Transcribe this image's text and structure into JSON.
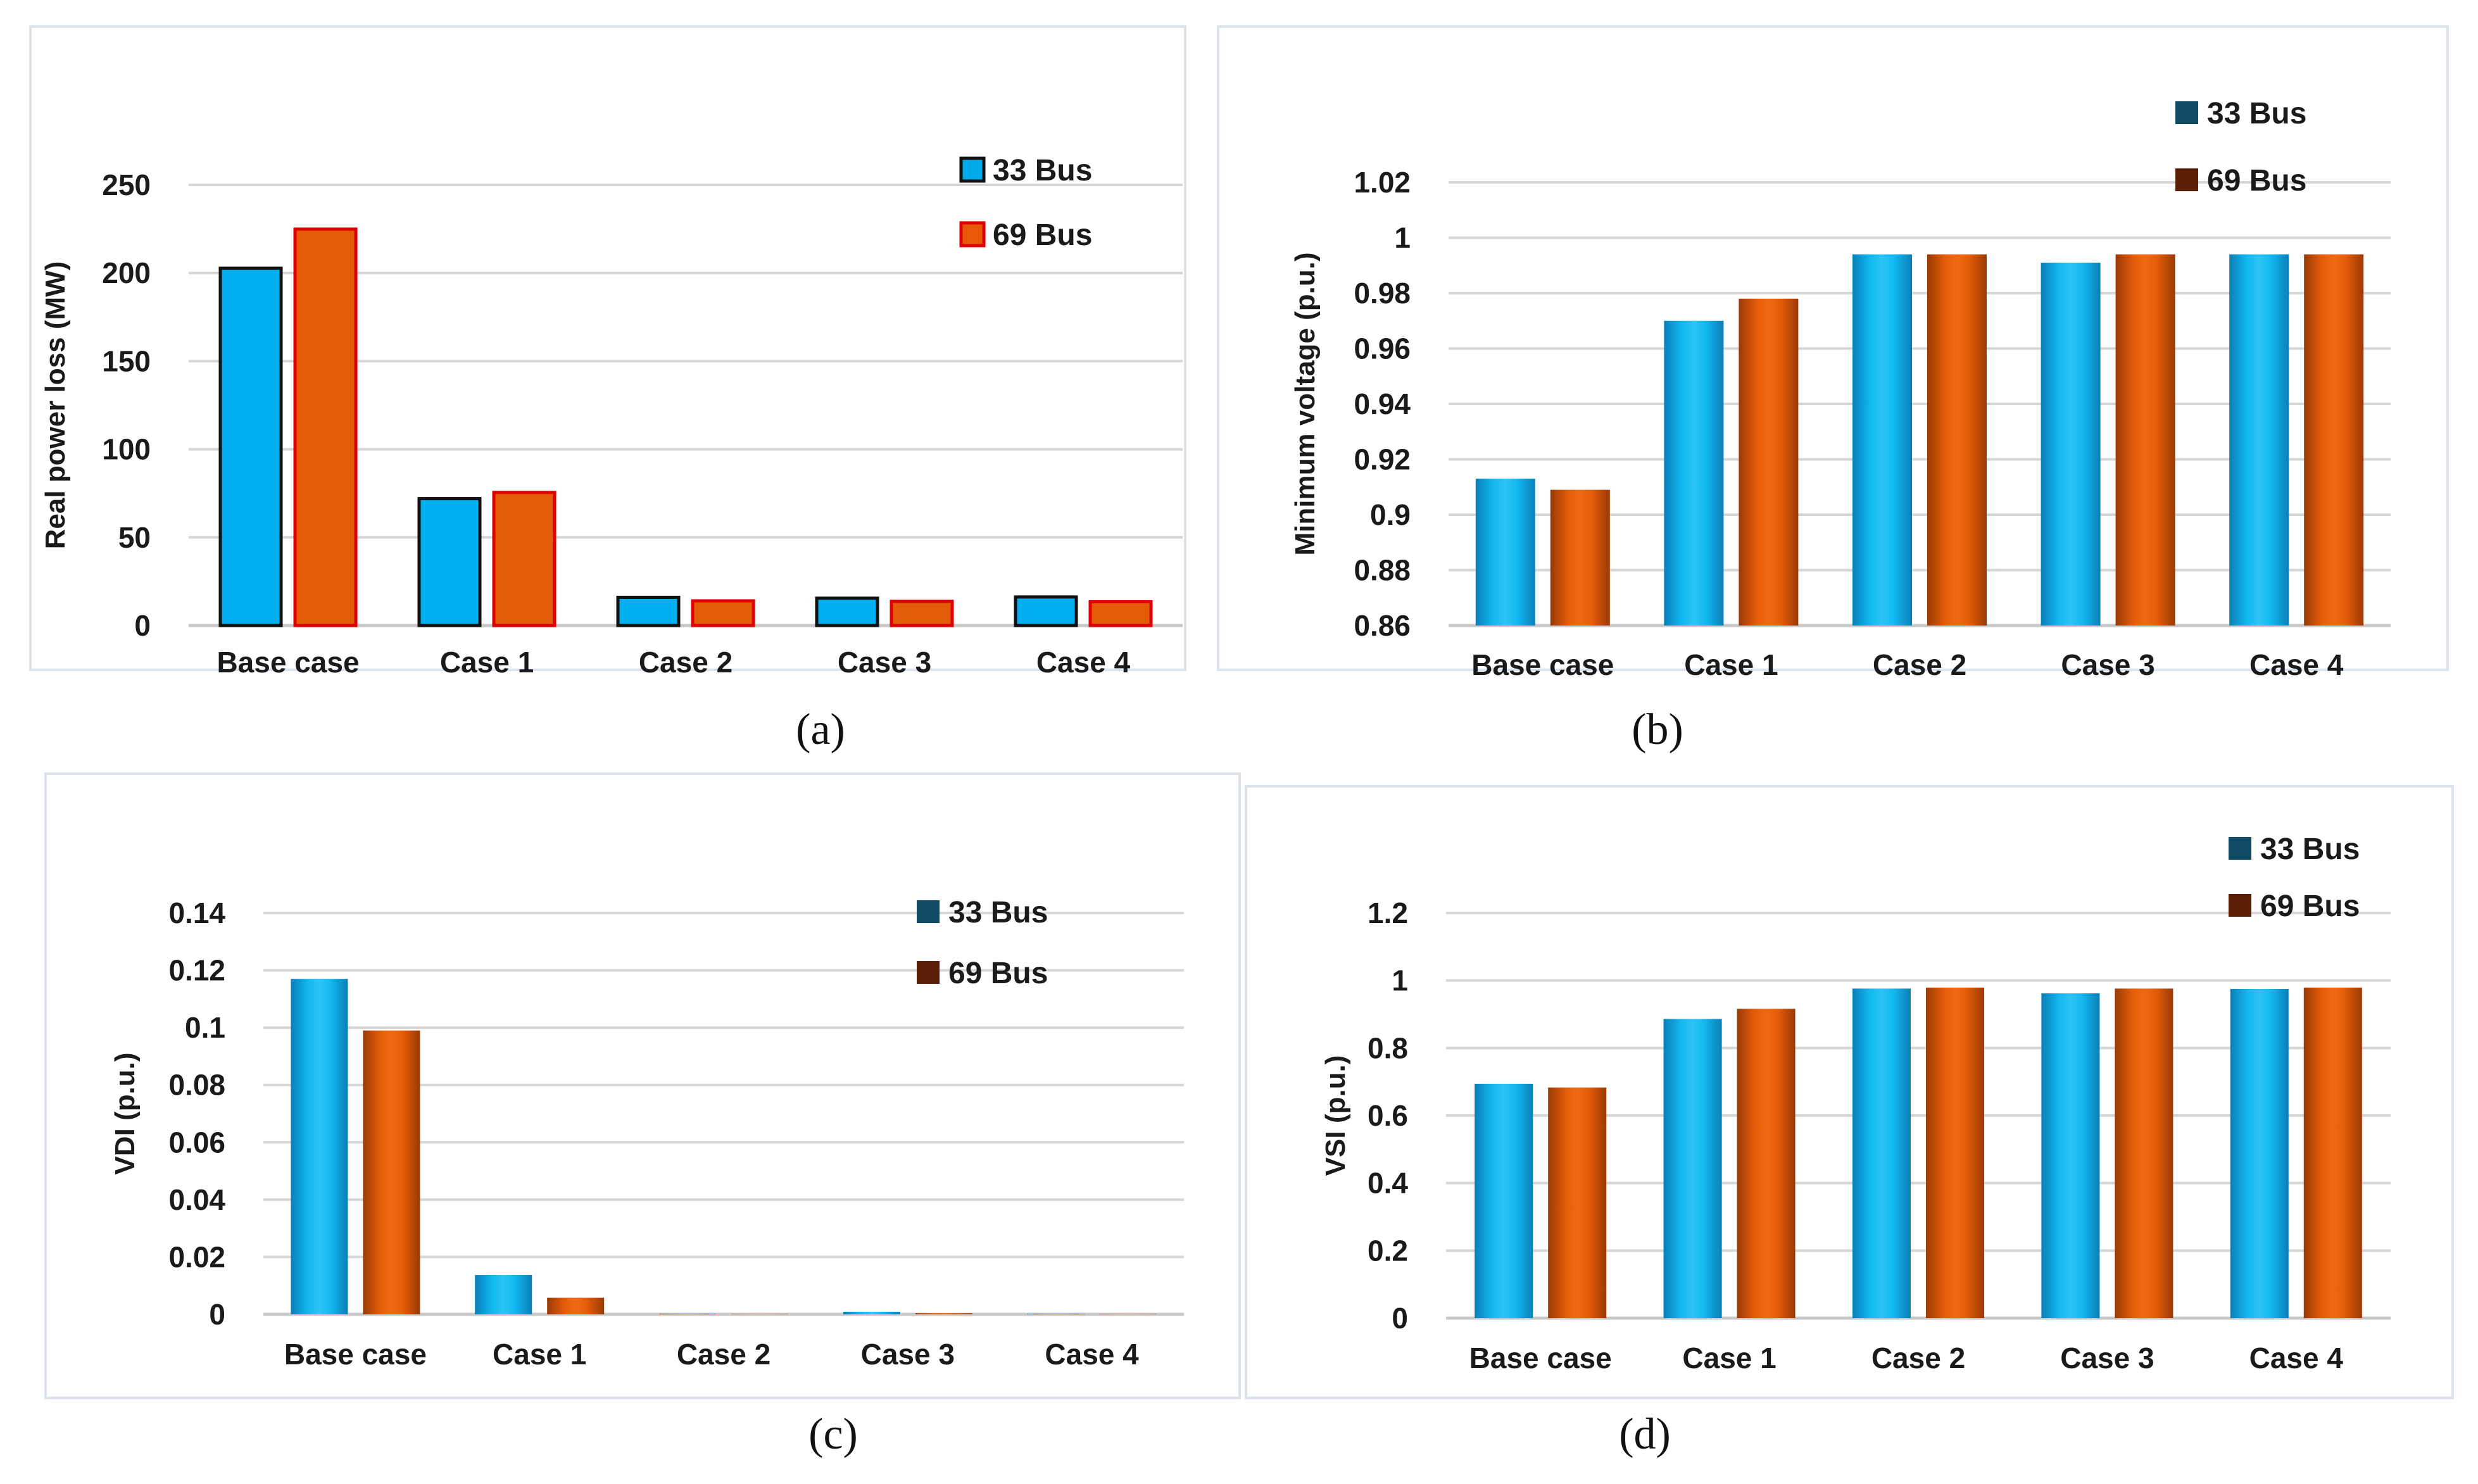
{
  "chart_data": [
    {
      "id": "a",
      "type": "bar",
      "caption": "(a)",
      "title": "",
      "xlabel": "",
      "ylabel": "Real power loss (MW)",
      "categories": [
        "Base case",
        "Case 1",
        "Case 2",
        "Case 3",
        "Case 4"
      ],
      "ylim": [
        0,
        250
      ],
      "yticks": [
        0,
        50,
        100,
        150,
        200,
        250
      ],
      "ytick_labels": [
        "0",
        "50",
        "100",
        "150",
        "200",
        "250"
      ],
      "grid": true,
      "legend_position": "top-right",
      "series": [
        {
          "name": "33 Bus",
          "values": [
            202.7,
            72.0,
            16.0,
            15.5,
            16.2
          ],
          "color": "#00b0f0",
          "edge": "#111111",
          "legend_color": "#00a9e8"
        },
        {
          "name": "69 Bus",
          "values": [
            224.9,
            75.5,
            14.0,
            13.7,
            13.5
          ],
          "color": "#e45c0a",
          "edge": "#e00000",
          "legend_color": "#e85a0a"
        }
      ]
    },
    {
      "id": "b",
      "type": "bar",
      "caption": "(b)",
      "title": "",
      "xlabel": "",
      "ylabel": "Minimum voltage (p.u.)",
      "categories": [
        "Base case",
        "Case 1",
        "Case 2",
        "Case 3",
        "Case 4"
      ],
      "ylim": [
        0.86,
        1.02
      ],
      "yticks": [
        0.86,
        0.88,
        0.9,
        0.92,
        0.94,
        0.96,
        0.98,
        1.0,
        1.02
      ],
      "ytick_labels": [
        "0.86",
        "0.88",
        "0.9",
        "0.92",
        "0.94",
        "0.96",
        "0.98",
        "1",
        "1.02"
      ],
      "grid": true,
      "legend_position": "top-right",
      "series": [
        {
          "name": "33 Bus",
          "values": [
            0.913,
            0.97,
            0.994,
            0.991,
            0.994
          ],
          "color": "#00b0f0",
          "edge": "none",
          "legend_color": "#0e4a63"
        },
        {
          "name": "69 Bus",
          "values": [
            0.909,
            0.978,
            0.994,
            0.994,
            0.994
          ],
          "color": "#e45c0a",
          "edge": "none",
          "legend_color": "#5a1e06"
        }
      ]
    },
    {
      "id": "c",
      "type": "bar",
      "caption": "(c)",
      "title": "",
      "xlabel": "",
      "ylabel": "VDI (p.u.)",
      "categories": [
        "Base case",
        "Case 1",
        "Case 2",
        "Case 3",
        "Case 4"
      ],
      "ylim": [
        0,
        0.14
      ],
      "yticks": [
        0,
        0.02,
        0.04,
        0.06,
        0.08,
        0.1,
        0.12,
        0.14
      ],
      "ytick_labels": [
        "0",
        "0.02",
        "0.04",
        "0.06",
        "0.08",
        "0.1",
        "0.12",
        "0.14"
      ],
      "grid": true,
      "legend_position": "top-right",
      "series": [
        {
          "name": "33 Bus",
          "values": [
            0.117,
            0.0137,
            0.0002,
            0.0009,
            0.0002
          ],
          "color": "#00b0f0",
          "edge": "none",
          "legend_color": "#0e4a63"
        },
        {
          "name": "69 Bus",
          "values": [
            0.099,
            0.0058,
            0.0001,
            0.0004,
            0.0001
          ],
          "color": "#e45c0a",
          "edge": "none",
          "legend_color": "#5a1e06"
        }
      ]
    },
    {
      "id": "d",
      "type": "bar",
      "caption": "(d)",
      "title": "",
      "xlabel": "",
      "ylabel": "VSI (p.u.)",
      "categories": [
        "Base case",
        "Case 1",
        "Case 2",
        "Case 3",
        "Case 4"
      ],
      "ylim": [
        0,
        1.2
      ],
      "yticks": [
        0,
        0.2,
        0.4,
        0.6,
        0.8,
        1.0,
        1.2
      ],
      "ytick_labels": [
        "0",
        "0.2",
        "0.4",
        "0.6",
        "0.8",
        "1",
        "1.2"
      ],
      "grid": true,
      "legend_position": "top-right",
      "series": [
        {
          "name": "33 Bus",
          "values": [
            0.694,
            0.886,
            0.976,
            0.962,
            0.975
          ],
          "color": "#00b0f0",
          "edge": "none",
          "legend_color": "#0e4a63"
        },
        {
          "name": "69 Bus",
          "values": [
            0.683,
            0.916,
            0.979,
            0.976,
            0.979
          ],
          "color": "#e45c0a",
          "edge": "none",
          "legend_color": "#5a1e06"
        }
      ]
    }
  ]
}
